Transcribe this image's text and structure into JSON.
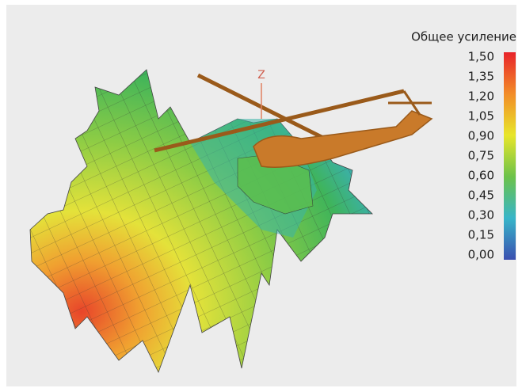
{
  "axis_label": "Z",
  "legend": {
    "title": "Общее усиление",
    "labels": [
      "1,50",
      "1,35",
      "1,20",
      "1,05",
      "0,90",
      "0,75",
      "0,60",
      "0,45",
      "0,30",
      "0,15",
      "0,00"
    ]
  }
}
